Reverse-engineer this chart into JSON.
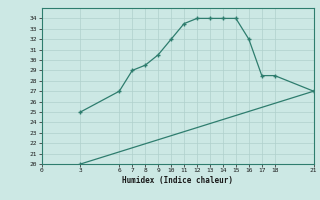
{
  "title": "",
  "xlabel": "Humidex (Indice chaleur)",
  "bg_color": "#cce8e4",
  "grid_color": "#b0d0cc",
  "line_color": "#2e7d6e",
  "xlim": [
    0,
    21
  ],
  "ylim": [
    20,
    35
  ],
  "xticks": [
    0,
    3,
    6,
    7,
    8,
    9,
    10,
    11,
    12,
    13,
    14,
    15,
    16,
    17,
    18,
    21
  ],
  "yticks": [
    20,
    21,
    22,
    23,
    24,
    25,
    26,
    27,
    28,
    29,
    30,
    31,
    32,
    33,
    34
  ],
  "curve1_x": [
    3,
    6,
    7,
    8,
    9,
    10,
    11,
    12,
    13,
    14,
    15,
    16,
    17,
    18,
    21
  ],
  "curve1_y": [
    25,
    27,
    29,
    29.5,
    30.5,
    32,
    33.5,
    34,
    34,
    34,
    34,
    32,
    28.5,
    28.5,
    27
  ],
  "curve2_x": [
    3,
    21
  ],
  "curve2_y": [
    20,
    27
  ]
}
